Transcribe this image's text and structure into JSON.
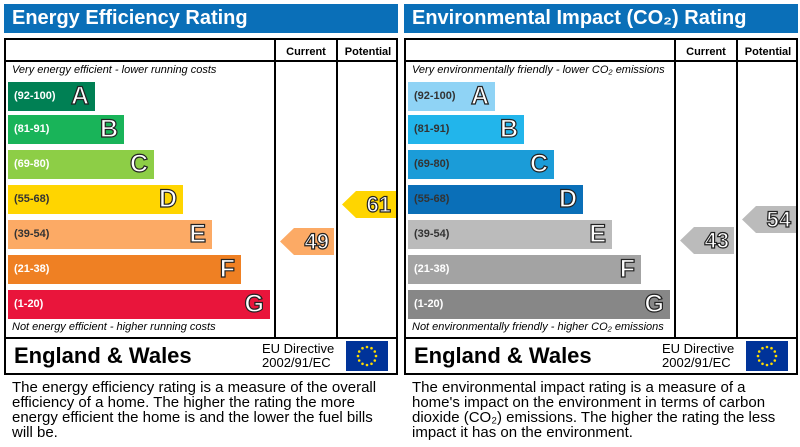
{
  "panels": [
    {
      "title": "Energy Efficiency Rating",
      "col_current": "Current",
      "col_potential": "Potential",
      "top_note": "Very energy efficient - lower running costs",
      "bottom_note": "Not energy efficient - higher running costs",
      "bands": [
        {
          "range": "(92-100)",
          "letter": "A",
          "color": "#008054",
          "text": "#ffffff"
        },
        {
          "range": "(81-91)",
          "letter": "B",
          "color": "#19b459",
          "text": "#ffffff"
        },
        {
          "range": "(69-80)",
          "letter": "C",
          "color": "#8dce46",
          "text": "#ffffff"
        },
        {
          "range": "(55-68)",
          "letter": "D",
          "color": "#ffd500",
          "text": "#333333"
        },
        {
          "range": "(39-54)",
          "letter": "E",
          "color": "#fcaa65",
          "text": "#333333"
        },
        {
          "range": "(21-38)",
          "letter": "F",
          "color": "#ef8023",
          "text": "#ffffff"
        },
        {
          "range": "(1-20)",
          "letter": "G",
          "color": "#e9153b",
          "text": "#ffffff"
        }
      ],
      "current": {
        "value": "49",
        "band": "E",
        "color": "#fcaa65"
      },
      "potential": {
        "value": "61",
        "band": "D",
        "color": "#ffd500"
      },
      "region": "England & Wales",
      "directive_line1": "EU Directive",
      "directive_line2": "2002/91/EC",
      "description": "The energy efficiency rating is a measure of the overall efficiency of a home. The higher the rating the more energy efficient the home is and the lower the fuel bills will be."
    },
    {
      "title": "Environmental Impact (CO₂) Rating",
      "col_current": "Current",
      "col_potential": "Potential",
      "top_note": "Very environmentally friendly - lower CO₂ emissions",
      "bottom_note": "Not environmentally friendly - higher CO₂ emissions",
      "bands": [
        {
          "range": "(92-100)",
          "letter": "A",
          "color": "#8fd3f5",
          "text": "#333333"
        },
        {
          "range": "(81-91)",
          "letter": "B",
          "color": "#22b5eb",
          "text": "#333333"
        },
        {
          "range": "(69-80)",
          "letter": "C",
          "color": "#1b9cd8",
          "text": "#333333"
        },
        {
          "range": "(55-68)",
          "letter": "D",
          "color": "#0a6fb8",
          "text": "#333333"
        },
        {
          "range": "(39-54)",
          "letter": "E",
          "color": "#bbbbbb",
          "text": "#333333"
        },
        {
          "range": "(21-38)",
          "letter": "F",
          "color": "#a3a3a3",
          "text": "#ffffff"
        },
        {
          "range": "(1-20)",
          "letter": "G",
          "color": "#878787",
          "text": "#ffffff"
        }
      ],
      "current": {
        "value": "43",
        "band": "E",
        "color": "#bbbbbb"
      },
      "potential": {
        "value": "54",
        "band": "E",
        "color": "#bbbbbb"
      },
      "region": "England & Wales",
      "directive_line1": "EU Directive",
      "directive_line2": "2002/91/EC",
      "description": "The environmental impact rating is a measure of a home's impact on the environment in terms of carbon dioxide (CO₂) emissions. The higher the rating the less impact it has on the environment."
    }
  ]
}
